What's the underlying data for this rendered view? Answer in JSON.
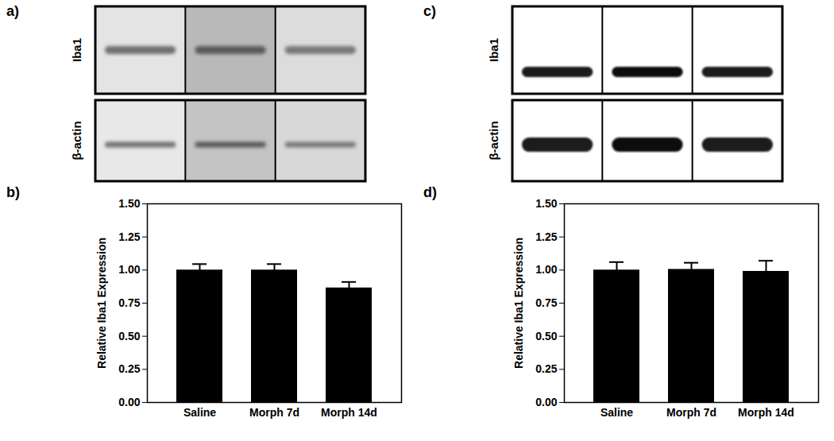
{
  "blots": [
    {
      "title": "a)",
      "rows": [
        "Iba1",
        "β-actin"
      ]
    },
    {
      "title": "c)",
      "rows": [
        "Iba1",
        "β-actin"
      ]
    }
  ],
  "chart_data": [
    {
      "type": "bar",
      "title": "b)",
      "categories": [
        "Saline",
        "Morph 7d",
        "Morph 14d"
      ],
      "values": [
        1.0,
        1.0,
        0.865
      ],
      "errors": [
        0.045,
        0.045,
        0.045
      ],
      "color": "#000000",
      "y_label": "Relative Iba1 Expression",
      "ylim": [
        0,
        1.5
      ],
      "yticks": [
        {
          "value": 0,
          "label": "0.00"
        },
        {
          "value": 0.25,
          "label": "0.25"
        },
        {
          "value": 0.5,
          "label": "0.50"
        },
        {
          "value": 0.75,
          "label": "0.75"
        },
        {
          "value": 1,
          "label": "1.00"
        },
        {
          "value": 1.25,
          "label": "1.25"
        },
        {
          "value": 1.5,
          "label": "1.50"
        }
      ]
    },
    {
      "type": "bar",
      "title": "d)",
      "categories": [
        "Saline",
        "Morph 7d",
        "Morph 14d"
      ],
      "values": [
        1.0,
        1.005,
        0.99
      ],
      "errors": [
        0.06,
        0.05,
        0.08
      ],
      "color": "#000000",
      "y_label": "Relative Iba1 Expression",
      "ylim": [
        0,
        1.5
      ],
      "yticks": [
        {
          "value": 0,
          "label": "0.00"
        },
        {
          "value": 0.25,
          "label": "0.25"
        },
        {
          "value": 0.5,
          "label": "0.50"
        },
        {
          "value": 0.75,
          "label": "0.75"
        },
        {
          "value": 1,
          "label": "1.00"
        },
        {
          "value": 1.25,
          "label": "1.25"
        },
        {
          "value": 1.5,
          "label": "1.50"
        }
      ]
    }
  ]
}
